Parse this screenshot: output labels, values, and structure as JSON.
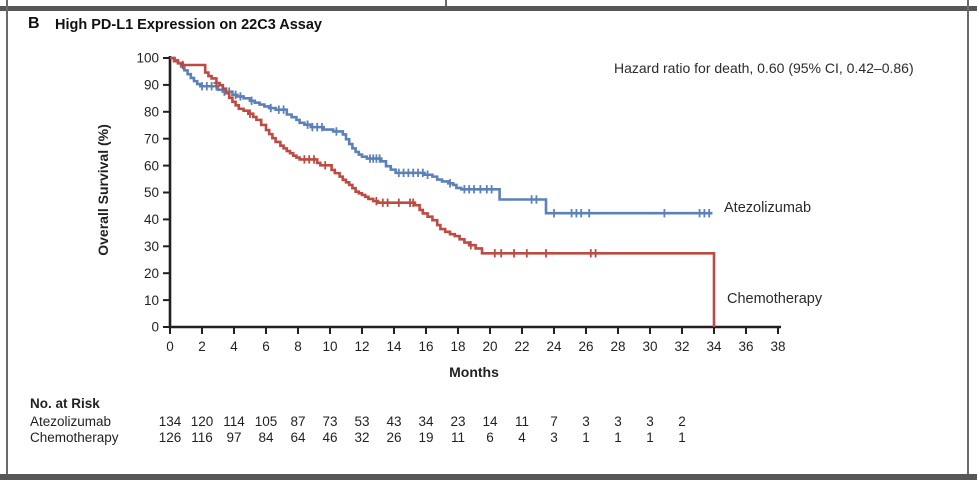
{
  "panel": {
    "letter": "B",
    "title": "High PD-L1 Expression on 22C3 Assay"
  },
  "annotation": {
    "hazard_ratio": "Hazard ratio for death, 0.60 (95% CI, 0.42–0.86)"
  },
  "chart_data": {
    "type": "line",
    "subtype": "kaplan-meier-step",
    "title": "High PD-L1 Expression on 22C3 Assay",
    "xlabel": "Months",
    "ylabel": "Overall Survival (%)",
    "xlim": [
      0,
      38
    ],
    "ylim": [
      0,
      100
    ],
    "xticks": [
      0,
      2,
      4,
      6,
      8,
      10,
      12,
      14,
      16,
      18,
      20,
      22,
      24,
      26,
      28,
      30,
      32,
      34,
      36,
      38
    ],
    "yticks": [
      0,
      10,
      20,
      30,
      40,
      50,
      60,
      70,
      80,
      90,
      100
    ],
    "grid": false,
    "legend_position": "right-of-curves",
    "axis_color": "#231f20",
    "series": [
      {
        "name": "Atezolizumab",
        "color": "#5b81b8",
        "steps": [
          [
            0,
            100
          ],
          [
            0.3,
            99.2
          ],
          [
            0.5,
            98.1
          ],
          [
            0.7,
            96.8
          ],
          [
            0.9,
            95.4
          ],
          [
            1.1,
            94.0
          ],
          [
            1.3,
            92.6
          ],
          [
            1.5,
            91.4
          ],
          [
            1.7,
            90.3
          ],
          [
            1.9,
            89.5
          ],
          [
            3.0,
            88.2
          ],
          [
            3.3,
            87.5
          ],
          [
            3.9,
            86.3
          ],
          [
            4.2,
            85.7
          ],
          [
            4.6,
            85.0
          ],
          [
            5.0,
            84.1
          ],
          [
            5.3,
            83.4
          ],
          [
            5.6,
            82.7
          ],
          [
            5.9,
            82.0
          ],
          [
            6.2,
            81.4
          ],
          [
            6.6,
            80.8
          ],
          [
            7.3,
            79.0
          ],
          [
            7.6,
            78.0
          ],
          [
            7.9,
            77.0
          ],
          [
            8.1,
            75.9
          ],
          [
            8.4,
            75.2
          ],
          [
            8.8,
            74.3
          ],
          [
            9.6,
            73.4
          ],
          [
            10.2,
            72.7
          ],
          [
            10.8,
            71.6
          ],
          [
            11.0,
            69.8
          ],
          [
            11.2,
            68.0
          ],
          [
            11.4,
            66.4
          ],
          [
            11.6,
            65.1
          ],
          [
            11.8,
            64.1
          ],
          [
            12.0,
            63.3
          ],
          [
            12.3,
            62.6
          ],
          [
            13.2,
            61.6
          ],
          [
            13.5,
            59.8
          ],
          [
            13.8,
            58.5
          ],
          [
            14.1,
            57.3
          ],
          [
            15.9,
            56.6
          ],
          [
            16.4,
            55.9
          ],
          [
            16.7,
            54.8
          ],
          [
            17.0,
            54.1
          ],
          [
            17.4,
            53.4
          ],
          [
            17.7,
            52.8
          ],
          [
            17.9,
            51.7
          ],
          [
            18.2,
            51.2
          ],
          [
            20.6,
            47.4
          ],
          [
            23.5,
            42.3
          ],
          [
            33.9,
            42.3
          ]
        ],
        "censor_times": [
          2.0,
          2.3,
          2.6,
          2.9,
          3.4,
          3.7,
          4.1,
          4.4,
          5.1,
          6.3,
          6.8,
          7.1,
          8.6,
          8.9,
          9.2,
          9.5,
          10.4,
          12.5,
          12.7,
          12.9,
          13.1,
          14.3,
          14.6,
          14.9,
          15.2,
          15.5,
          15.8,
          16.1,
          17.5,
          18.4,
          18.7,
          19.0,
          19.4,
          19.8,
          20.1,
          22.6,
          22.9,
          24.0,
          25.1,
          25.4,
          25.7,
          26.2,
          30.9,
          33.1,
          33.4,
          33.7
        ]
      },
      {
        "name": "Chemotherapy",
        "color": "#bc4c43",
        "steps": [
          [
            0,
            100
          ],
          [
            0.25,
            98.8
          ],
          [
            0.5,
            98.0
          ],
          [
            0.8,
            97.4
          ],
          [
            2.2,
            94.6
          ],
          [
            2.4,
            93.3
          ],
          [
            2.6,
            92.4
          ],
          [
            2.9,
            90.7
          ],
          [
            3.1,
            89.9
          ],
          [
            3.3,
            88.6
          ],
          [
            3.5,
            86.9
          ],
          [
            3.7,
            85.2
          ],
          [
            3.9,
            83.7
          ],
          [
            4.1,
            82.4
          ],
          [
            4.3,
            81.1
          ],
          [
            4.6,
            80.4
          ],
          [
            4.9,
            79.3
          ],
          [
            5.2,
            78.1
          ],
          [
            5.4,
            77.0
          ],
          [
            5.7,
            75.1
          ],
          [
            6.0,
            73.2
          ],
          [
            6.2,
            71.7
          ],
          [
            6.4,
            70.2
          ],
          [
            6.6,
            68.8
          ],
          [
            6.9,
            67.4
          ],
          [
            7.1,
            66.4
          ],
          [
            7.3,
            65.4
          ],
          [
            7.5,
            64.6
          ],
          [
            7.7,
            63.7
          ],
          [
            7.9,
            63.0
          ],
          [
            8.1,
            62.3
          ],
          [
            9.2,
            61.0
          ],
          [
            9.4,
            60.1
          ],
          [
            10.1,
            58.4
          ],
          [
            10.3,
            57.2
          ],
          [
            10.6,
            55.9
          ],
          [
            10.8,
            54.7
          ],
          [
            11.0,
            53.8
          ],
          [
            11.2,
            52.8
          ],
          [
            11.4,
            51.6
          ],
          [
            11.6,
            50.3
          ],
          [
            11.8,
            49.7
          ],
          [
            12.0,
            49.1
          ],
          [
            12.2,
            48.4
          ],
          [
            12.4,
            47.6
          ],
          [
            12.7,
            46.8
          ],
          [
            13.0,
            46.2
          ],
          [
            15.3,
            45.3
          ],
          [
            15.6,
            43.5
          ],
          [
            15.8,
            42.2
          ],
          [
            16.1,
            41.0
          ],
          [
            16.4,
            39.7
          ],
          [
            16.7,
            37.9
          ],
          [
            16.9,
            36.4
          ],
          [
            17.2,
            35.4
          ],
          [
            17.5,
            34.5
          ],
          [
            17.8,
            33.8
          ],
          [
            18.1,
            32.6
          ],
          [
            18.4,
            31.4
          ],
          [
            18.7,
            30.4
          ],
          [
            19.1,
            29.2
          ],
          [
            19.5,
            27.4
          ],
          [
            34.0,
            27.4
          ],
          [
            34.0,
            0
          ]
        ],
        "censor_times": [
          0.8,
          2.9,
          5.0,
          8.4,
          8.7,
          9.0,
          9.7,
          12.9,
          13.3,
          13.6,
          14.3,
          15.0,
          15.2,
          18.8,
          20.3,
          20.7,
          21.5,
          22.3,
          23.5,
          26.3,
          26.6
        ]
      }
    ]
  },
  "risk_table": {
    "title": "No. at Risk",
    "months": [
      0,
      2,
      4,
      6,
      8,
      10,
      12,
      14,
      16,
      18,
      20,
      22,
      24,
      26,
      28,
      30,
      32
    ],
    "rows": [
      {
        "label": "Atezolizumab",
        "values": [
          134,
          120,
          114,
          105,
          87,
          73,
          53,
          43,
          34,
          23,
          14,
          11,
          7,
          3,
          3,
          3,
          2
        ]
      },
      {
        "label": "Chemotherapy",
        "values": [
          126,
          116,
          97,
          84,
          64,
          46,
          32,
          26,
          19,
          11,
          6,
          4,
          3,
          1,
          1,
          1,
          1
        ]
      }
    ]
  }
}
